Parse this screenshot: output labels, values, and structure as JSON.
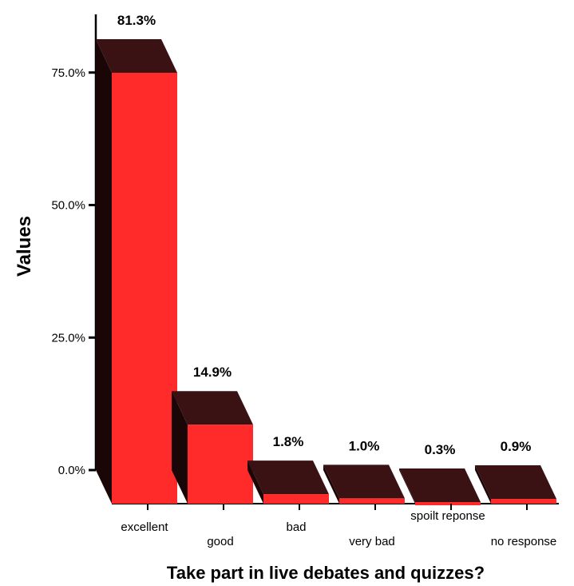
{
  "chart_data": {
    "type": "bar",
    "style": "3d",
    "title": "",
    "xlabel": "Take part in live debates and quizzes?",
    "ylabel": "Values",
    "ylim": [
      0,
      81.3
    ],
    "yticks": [
      0,
      25,
      50,
      75
    ],
    "ytick_labels": [
      "0.0%",
      "25.0%",
      "50.0%",
      "75.0%"
    ],
    "categories": [
      "excellent",
      "good",
      "bad",
      "very bad",
      "spoilt reponse",
      "no response"
    ],
    "values": [
      81.3,
      14.9,
      1.8,
      1.0,
      0.3,
      0.9
    ],
    "value_labels": [
      "81.3%",
      "14.9%",
      "1.8%",
      "1.0%",
      "0.3%",
      "0.9%"
    ],
    "grid": false,
    "legend": "none",
    "colors": {
      "bar_front": "#ff2a2a",
      "bar_top": "#3a1214",
      "bar_side": "#1a0606",
      "axis": "#000000"
    }
  }
}
